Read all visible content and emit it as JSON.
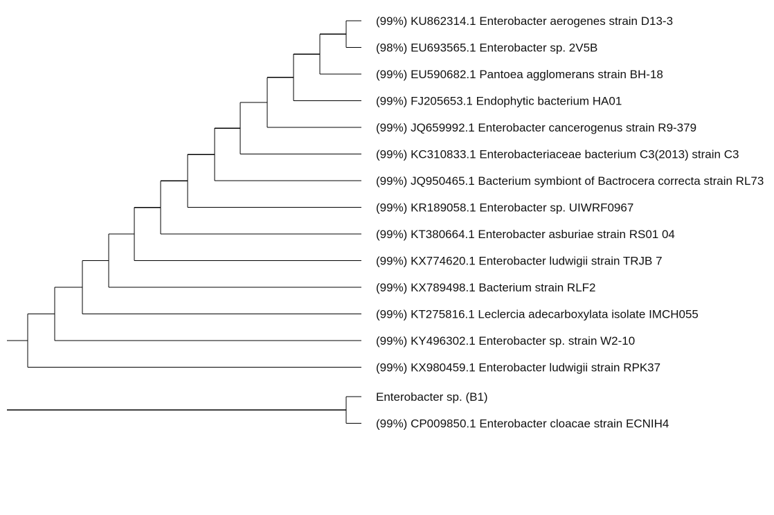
{
  "tree": {
    "leaves": [
      {
        "identity": "(99%)",
        "accession": "KU862314.1",
        "name": "Enterobacter aerogenes strain D13-3"
      },
      {
        "identity": "(98%)",
        "accession": "EU693565.1",
        "name": "Enterobacter sp. 2V5B"
      },
      {
        "identity": "(99%)",
        "accession": "EU590682.1",
        "name": "Pantoea agglomerans strain BH-18"
      },
      {
        "identity": "(99%)",
        "accession": "FJ205653.1",
        "name": "Endophytic bacterium HA01"
      },
      {
        "identity": "(99%)",
        "accession": "JQ659992.1",
        "name": "Enterobacter cancerogenus strain R9-379"
      },
      {
        "identity": "(99%)",
        "accession": "KC310833.1",
        "name": "Enterobacteriaceae bacterium C3(2013) strain C3"
      },
      {
        "identity": "(99%)",
        "accession": "JQ950465.1",
        "name": "Bacterium symbiont of Bactrocera correcta strain RL73"
      },
      {
        "identity": "(99%)",
        "accession": "KR189058.1",
        "name": "Enterobacter sp. UIWRF0967"
      },
      {
        "identity": "(99%)",
        "accession": "KT380664.1",
        "name": "Enterobacter asburiae strain RS01 04"
      },
      {
        "identity": "(99%)",
        "accession": "KX774620.1",
        "name": "Enterobacter ludwigii strain TRJB 7"
      },
      {
        "identity": "(99%)",
        "accession": "KX789498.1",
        "name": "Bacterium strain RLF2"
      },
      {
        "identity": "(99%)",
        "accession": "KT275816.1",
        "name": "Leclercia adecarboxylata isolate IMCH055"
      },
      {
        "identity": "(99%)",
        "accession": "KY496302.1",
        "name": "Enterobacter sp. strain W2-10"
      },
      {
        "identity": "(99%)",
        "accession": "KX980459.1",
        "name": "Enterobacter ludwigii strain RPK37"
      },
      {
        "identity": "",
        "accession": "",
        "name": "Enterobacter sp. (B1)"
      },
      {
        "identity": "(99%)",
        "accession": "CP009850.1",
        "name": "Enterobacter cloacae strain ECNIH4"
      }
    ],
    "topology": "(((((((((((((leaf0,leaf1),leaf2),leaf3),leaf4),leaf5),leaf6),leaf7),leaf8),leaf9),leaf10),leaf11),leaf12),leaf13),(leaf14,leaf15)"
  }
}
